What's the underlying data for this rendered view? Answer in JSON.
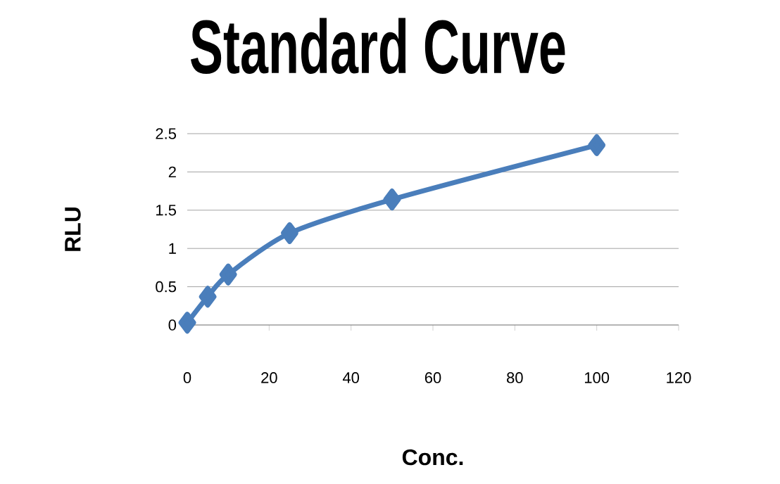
{
  "chart_data": {
    "type": "line",
    "title": "Standard Curve",
    "xlabel": "Conc.",
    "ylabel": "RLU",
    "x": [
      0,
      5,
      10,
      25,
      50,
      100
    ],
    "series": [
      {
        "color": "#4a7ebb",
        "values": [
          0.03,
          0.37,
          0.66,
          1.2,
          1.64,
          2.35
        ]
      }
    ],
    "xlim": [
      0,
      120
    ],
    "xticks": [
      0,
      20,
      40,
      60,
      80,
      100,
      120
    ],
    "ylim": [
      0,
      2.5
    ],
    "yticks": [
      0,
      0.5,
      1,
      1.5,
      2,
      2.5
    ],
    "grid": "y",
    "marker": "diamond",
    "line_style": "solid"
  }
}
